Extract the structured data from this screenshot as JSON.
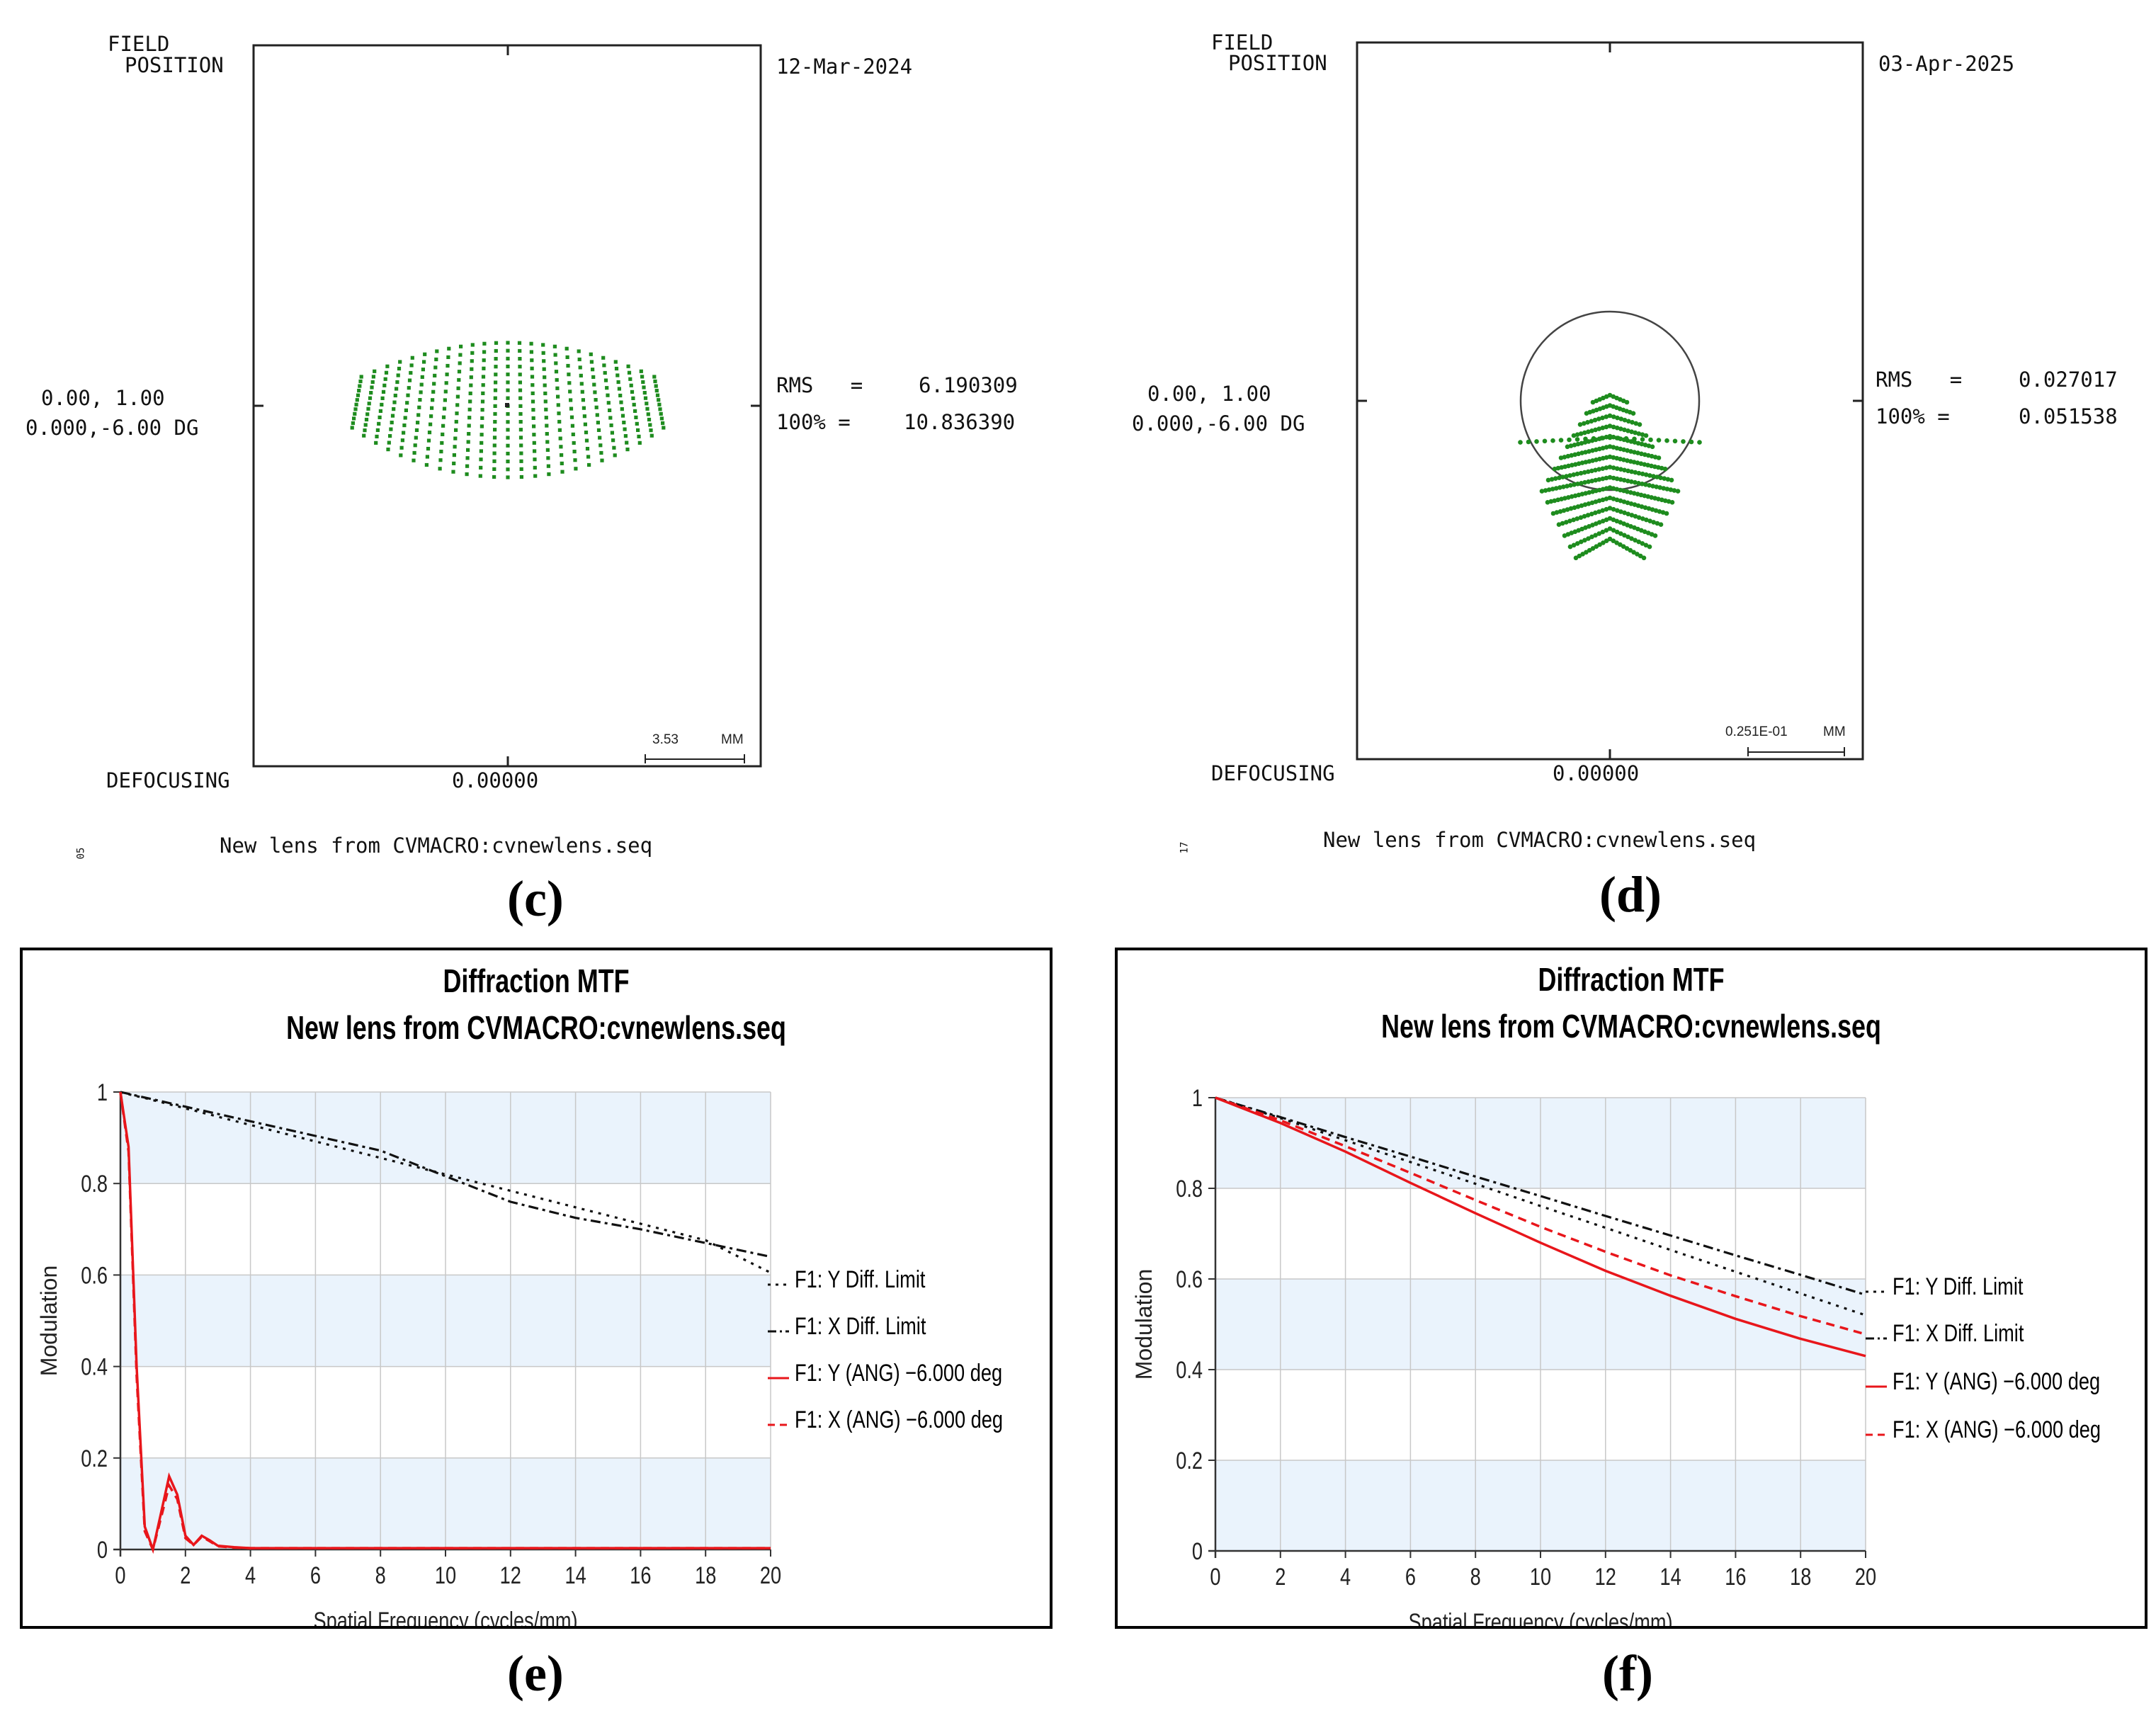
{
  "spot_c": {
    "field_label_1": "FIELD",
    "field_label_2": "POSITION",
    "date": "12-Mar-2024",
    "position_1": "0.00, 1.00",
    "position_2": "0.000,-6.00 DG",
    "rms_label": "RMS   =",
    "rms_value": "6.190309",
    "p100_label": "100% =",
    "p100_value": "10.836390",
    "scale_value": "3.53",
    "scale_unit": "MM",
    "defocus_label": "DEFOCUSING",
    "defocus_value": "0.00000",
    "caption": "New lens from CVMACRO:cvnewlens.seq",
    "side_mark": "05",
    "panel": "(c)"
  },
  "spot_d": {
    "field_label_1": "FIELD",
    "field_label_2": "POSITION",
    "date": "03-Apr-2025",
    "position_1": "0.00, 1.00",
    "position_2": "0.000,-6.00 DG",
    "rms_label": "RMS   =",
    "rms_value": "0.027017",
    "p100_label": "100% =",
    "p100_value": "0.051538",
    "scale_value": "0.251E-01",
    "scale_unit": "MM",
    "defocus_label": "DEFOCUSING",
    "defocus_value": "0.00000",
    "caption": "New lens from CVMACRO:cvnewlens.seq",
    "side_mark": "17",
    "panel": "(d)"
  },
  "mtf_e": {
    "title": "Diffraction MTF",
    "subtitle": "New lens from CVMACRO:cvnewlens.seq",
    "panel": "(e)",
    "legend": [
      "F1: Y Diff. Limit",
      "F1: X Diff. Limit",
      "F1: Y (ANG) −6.000 deg",
      "F1: X (ANG) −6.000 deg"
    ]
  },
  "mtf_f": {
    "title": "Diffraction MTF",
    "subtitle": "New lens from CVMACRO:cvnewlens.seq",
    "panel": "(f)",
    "legend": [
      "F1: Y Diff. Limit",
      "F1: X Diff. Limit",
      "F1: Y (ANG) −6.000 deg",
      "F1: X (ANG) −6.000 deg"
    ]
  },
  "colors": {
    "spot": "#1e8c1e",
    "red": "#e8161b",
    "black": "#111111",
    "band": "#eaf3fc",
    "grid": "#c8c8c8"
  },
  "chart_data": [
    {
      "type": "line",
      "title": "Diffraction MTF",
      "subtitle": "New lens from CVMACRO:cvnewlens.seq",
      "xlabel": "Spatial Frequency (cycles/mm)",
      "ylabel": "Modulation",
      "xlim": [
        0,
        20
      ],
      "ylim": [
        0,
        1
      ],
      "xticks": [
        0,
        2,
        4,
        6,
        8,
        10,
        12,
        14,
        16,
        18,
        20
      ],
      "yticks": [
        0,
        0.2,
        0.4,
        0.6,
        0.8,
        1
      ],
      "ytick_labels": [
        "0",
        "0.2",
        "0.4",
        "0.6",
        "0.8",
        "1"
      ],
      "x": [
        0,
        0.25,
        0.5,
        0.75,
        1,
        1.25,
        1.5,
        1.75,
        2,
        2.25,
        2.5,
        2.75,
        3,
        3.5,
        4,
        5,
        6,
        8,
        10,
        12,
        14,
        16,
        18,
        20
      ],
      "series": [
        {
          "name": "F1: Y Diff. Limit",
          "style": "dotted",
          "color": "#111111",
          "values": [
            1,
            0.995,
            0.991,
            0.987,
            0.982,
            0.978,
            0.973,
            0.969,
            0.964,
            0.96,
            0.955,
            0.951,
            0.946,
            0.937,
            0.928,
            0.91,
            0.892,
            0.856,
            0.82,
            0.784,
            0.748,
            0.712,
            0.676,
            0.605
          ]
        },
        {
          "name": "F1: X Diff. Limit",
          "style": "dashdot",
          "color": "#111111",
          "values": [
            1,
            0.996,
            0.992,
            0.988,
            0.984,
            0.98,
            0.976,
            0.972,
            0.968,
            0.964,
            0.96,
            0.956,
            0.952,
            0.944,
            0.936,
            0.92,
            0.904,
            0.872,
            0.816,
            0.76,
            0.725,
            0.7,
            0.67,
            0.64
          ]
        },
        {
          "name": "F1: Y (ANG) −6.000 deg",
          "style": "solid",
          "color": "#e8161b",
          "values": [
            1,
            0.88,
            0.4,
            0.05,
            0.0,
            0.08,
            0.16,
            0.12,
            0.03,
            0.01,
            0.03,
            0.02,
            0.008,
            0.005,
            0.003,
            0.003,
            0.003,
            0.003,
            0.003,
            0.003,
            0.003,
            0.003,
            0.003,
            0.003
          ]
        },
        {
          "name": "F1: X (ANG) −6.000 deg",
          "style": "dashed",
          "color": "#e8161b",
          "values": [
            1,
            0.87,
            0.38,
            0.04,
            0.0,
            0.07,
            0.14,
            0.11,
            0.025,
            0.01,
            0.028,
            0.018,
            0.007,
            0.004,
            0.003,
            0.003,
            0.003,
            0.003,
            0.003,
            0.003,
            0.003,
            0.003,
            0.003,
            0.003
          ]
        }
      ],
      "legend_position": "right",
      "grid": true
    },
    {
      "type": "line",
      "title": "Diffraction MTF",
      "subtitle": "New lens from CVMACRO:cvnewlens.seq",
      "xlabel": "Spatial Frequency (cycles/mm)",
      "ylabel": "Modulation",
      "xlim": [
        0,
        20
      ],
      "ylim": [
        0,
        1
      ],
      "xticks": [
        0,
        2,
        4,
        6,
        8,
        10,
        12,
        14,
        16,
        18,
        20
      ],
      "yticks": [
        0,
        0.2,
        0.4,
        0.6,
        0.8,
        1
      ],
      "ytick_labels": [
        "0",
        "0.2",
        "0.4",
        "0.6",
        "0.8",
        "1"
      ],
      "x": [
        0,
        2,
        4,
        6,
        8,
        10,
        12,
        14,
        16,
        18,
        20
      ],
      "series": [
        {
          "name": "F1: Y Diff. Limit",
          "style": "dotted",
          "color": "#111111",
          "values": [
            1,
            0.955,
            0.906,
            0.858,
            0.81,
            0.761,
            0.713,
            0.664,
            0.616,
            0.568,
            0.52
          ]
        },
        {
          "name": "F1: X Diff. Limit",
          "style": "dashdot",
          "color": "#111111",
          "values": [
            1,
            0.957,
            0.913,
            0.87,
            0.826,
            0.783,
            0.739,
            0.696,
            0.652,
            0.609,
            0.565
          ]
        },
        {
          "name": "F1: Y (ANG) −6.000 deg",
          "style": "solid",
          "color": "#e8161b",
          "values": [
            1,
            0.944,
            0.881,
            0.812,
            0.745,
            0.68,
            0.618,
            0.563,
            0.512,
            0.468,
            0.43
          ]
        },
        {
          "name": "F1: X (ANG) −6.000 deg",
          "style": "dashed",
          "color": "#e8161b",
          "values": [
            1,
            0.95,
            0.893,
            0.834,
            0.774,
            0.715,
            0.66,
            0.608,
            0.562,
            0.518,
            0.478
          ]
        }
      ],
      "legend_position": "right",
      "grid": true
    }
  ]
}
